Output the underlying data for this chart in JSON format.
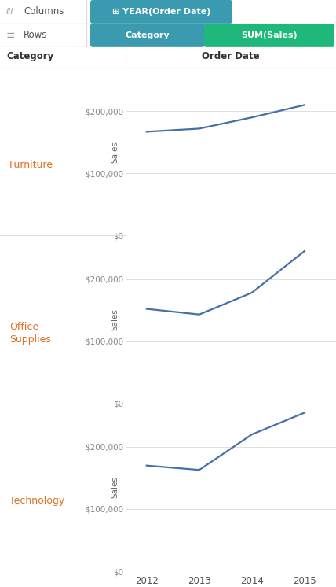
{
  "categories": [
    "Furniture",
    "Office\nSupplies",
    "Technology"
  ],
  "categories_display": [
    "Furniture",
    "Office\nSupplies",
    "Technology"
  ],
  "years": [
    2012,
    2013,
    2014,
    2015
  ],
  "sales": {
    "Furniture": [
      167000,
      172000,
      190000,
      210000
    ],
    "Office\nSupplies": [
      152000,
      143000,
      178000,
      245000
    ],
    "Technology": [
      170000,
      163000,
      220000,
      255000
    ]
  },
  "ylim": [
    0,
    270000
  ],
  "yticks": [
    0,
    100000,
    200000
  ],
  "ytick_labels": [
    "$0",
    "$100,000",
    "$200,000"
  ],
  "line_color": "#4472a8",
  "line_width": 1.6,
  "bg_color": "#ffffff",
  "plot_bg": "#ffffff",
  "grid_color": "#e0e0e0",
  "axis_label_color": "#666666",
  "cat_label_color": "#e07020",
  "header_label_color": "#333333",
  "col_header_bg": "#3a9ab0",
  "row_header_bg1": "#3a9ab0",
  "row_header_bg2": "#1db87a",
  "col_pill_text": "⊞ YEAR(Order Date)",
  "row_pill1_text": "Category",
  "row_pill2_text": "SUM(Sales)",
  "col_shelf_label": "Columns",
  "row_shelf_label": "Rows",
  "top_col_label": "Order Date",
  "left_col_label": "Category",
  "toolbar_bg": "#f7f7f7",
  "toolbar_sep_color": "#dddddd",
  "shelf_icon_color": "#999999",
  "shelf_text_color": "#555555"
}
